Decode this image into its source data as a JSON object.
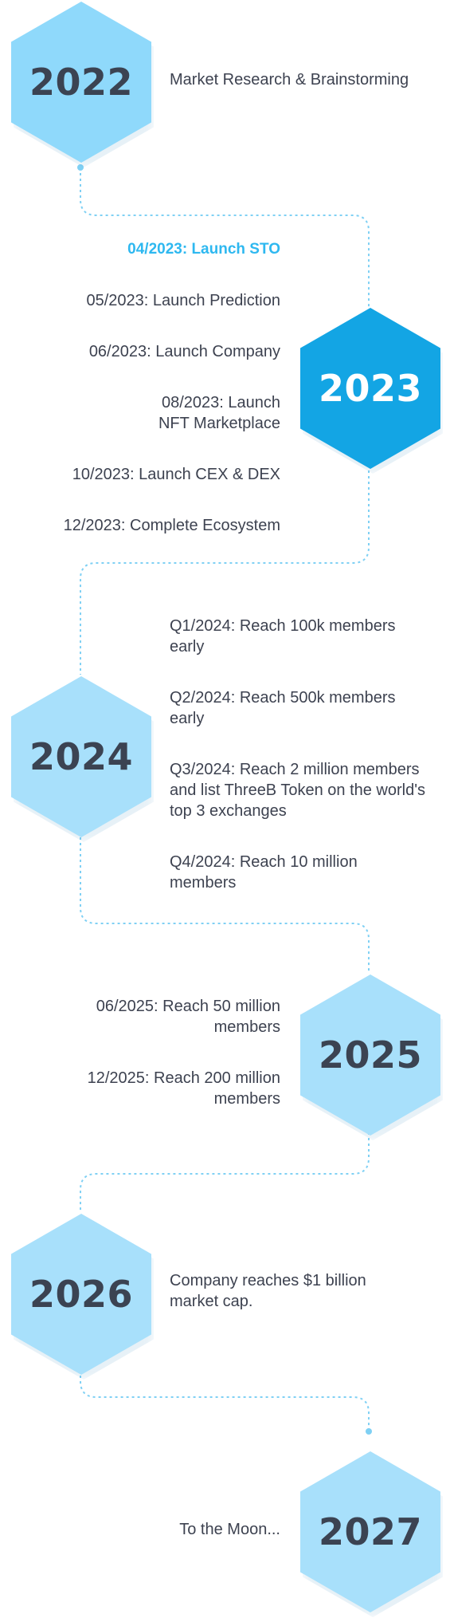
{
  "milestones": [
    {
      "year": "2022",
      "items": [
        "Market Research & Brainstorming"
      ]
    },
    {
      "year": "2023",
      "items": [
        "04/2023: Launch STO",
        "05/2023: Launch Prediction",
        "06/2023: Launch Company",
        "08/2023: Launch NFT Marketplace",
        "10/2023: Launch CEX & DEX",
        "12/2023: Complete Ecosystem"
      ]
    },
    {
      "year": "2024",
      "items": [
        "Q1/2024: Reach 100k members early",
        "Q2/2024: Reach 500k members early",
        "Q3/2024: Reach 2 million members and list ThreeB Token on the world's top 3 exchanges",
        "Q4/2024: Reach 10 million members"
      ]
    },
    {
      "year": "2025",
      "items": [
        "06/2025: Reach 50 million members",
        "12/2025: Reach 200 million members"
      ]
    },
    {
      "year": "2026",
      "items": [
        "Company reaches $1 billion market cap."
      ]
    },
    {
      "year": "2027",
      "items": [
        "To the Moon..."
      ]
    }
  ],
  "colors": {
    "hex_light": "#a8e0fb",
    "hex_active": "#13a5e4",
    "highlight_text": "#2eb8f0",
    "body_text": "#3d4250",
    "connector": "#7fd0f4"
  }
}
